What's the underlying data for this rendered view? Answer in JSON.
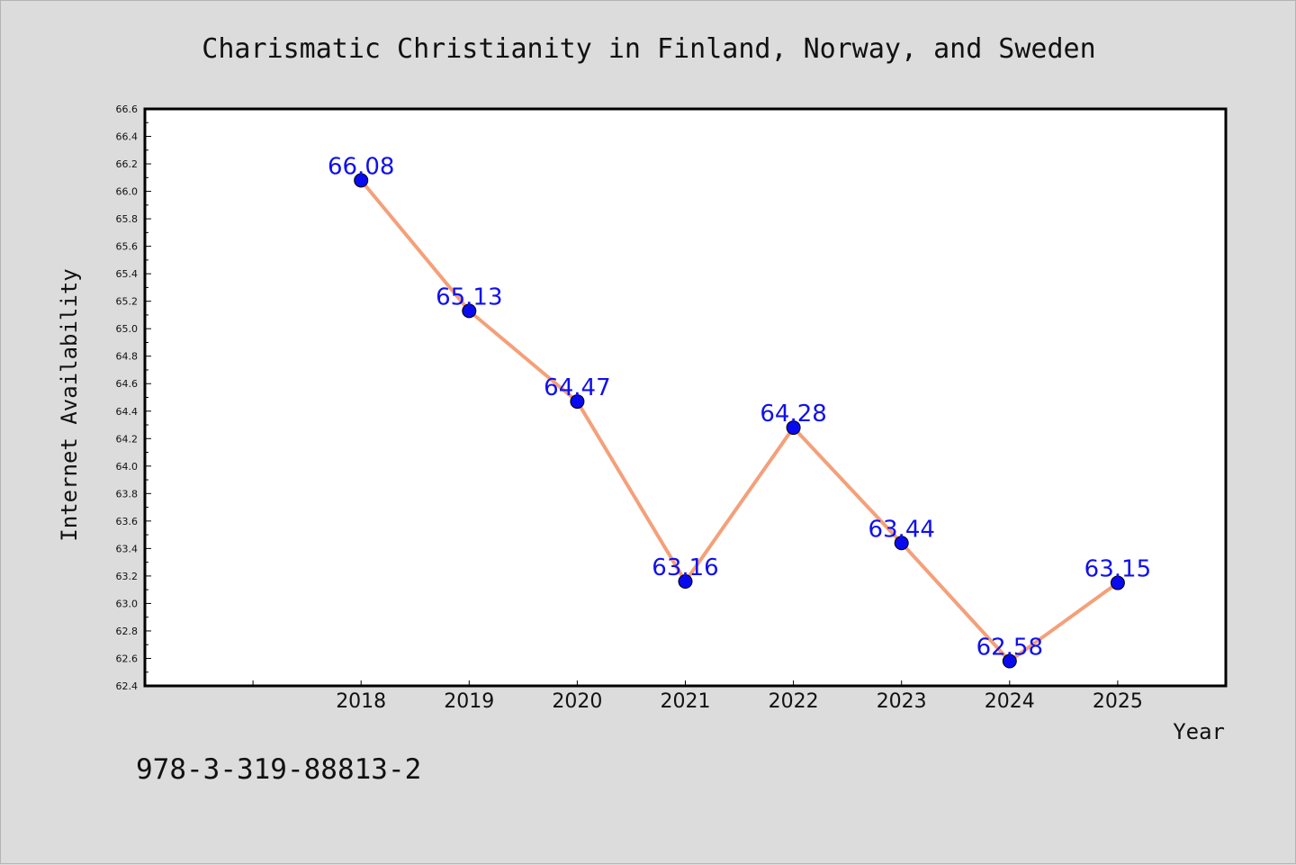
{
  "chart_data": {
    "type": "line",
    "title": "Charismatic Christianity in Finland, Norway, and Sweden",
    "xlabel": "Year",
    "ylabel": "Internet Availability",
    "x": [
      2018,
      2019,
      2020,
      2021,
      2022,
      2023,
      2024,
      2025
    ],
    "series": [
      {
        "values": [
          66.08,
          65.13,
          64.47,
          63.16,
          64.28,
          63.44,
          62.58,
          63.15
        ]
      }
    ],
    "data_labels": [
      "66.08",
      "65.13",
      "64.47",
      "63.16",
      "64.28",
      "63.44",
      "62.58",
      "63.15"
    ],
    "xticks": [
      "2018",
      "2019",
      "2020",
      "2021",
      "2022",
      "2023",
      "2024",
      "2025"
    ],
    "xlim": [
      2016,
      2026
    ],
    "ylim": [
      62.4,
      66.6
    ],
    "yticks": [
      "62.4",
      "62.6",
      "62.8",
      "63.0",
      "63.2",
      "63.4",
      "63.6",
      "63.8",
      "64.0",
      "64.2",
      "64.4",
      "64.6",
      "64.8",
      "65.0",
      "65.2",
      "65.4",
      "65.6",
      "65.8",
      "66.0",
      "66.2",
      "66.4",
      "66.6"
    ],
    "grid": false,
    "colors": {
      "line": "#f4a07a",
      "marker": "#0a0aee",
      "label": "#1010ee",
      "background": "#dcdcdc",
      "plot_background": "#ffffff"
    }
  },
  "footer": {
    "code": "978-3-319-88813-2"
  }
}
